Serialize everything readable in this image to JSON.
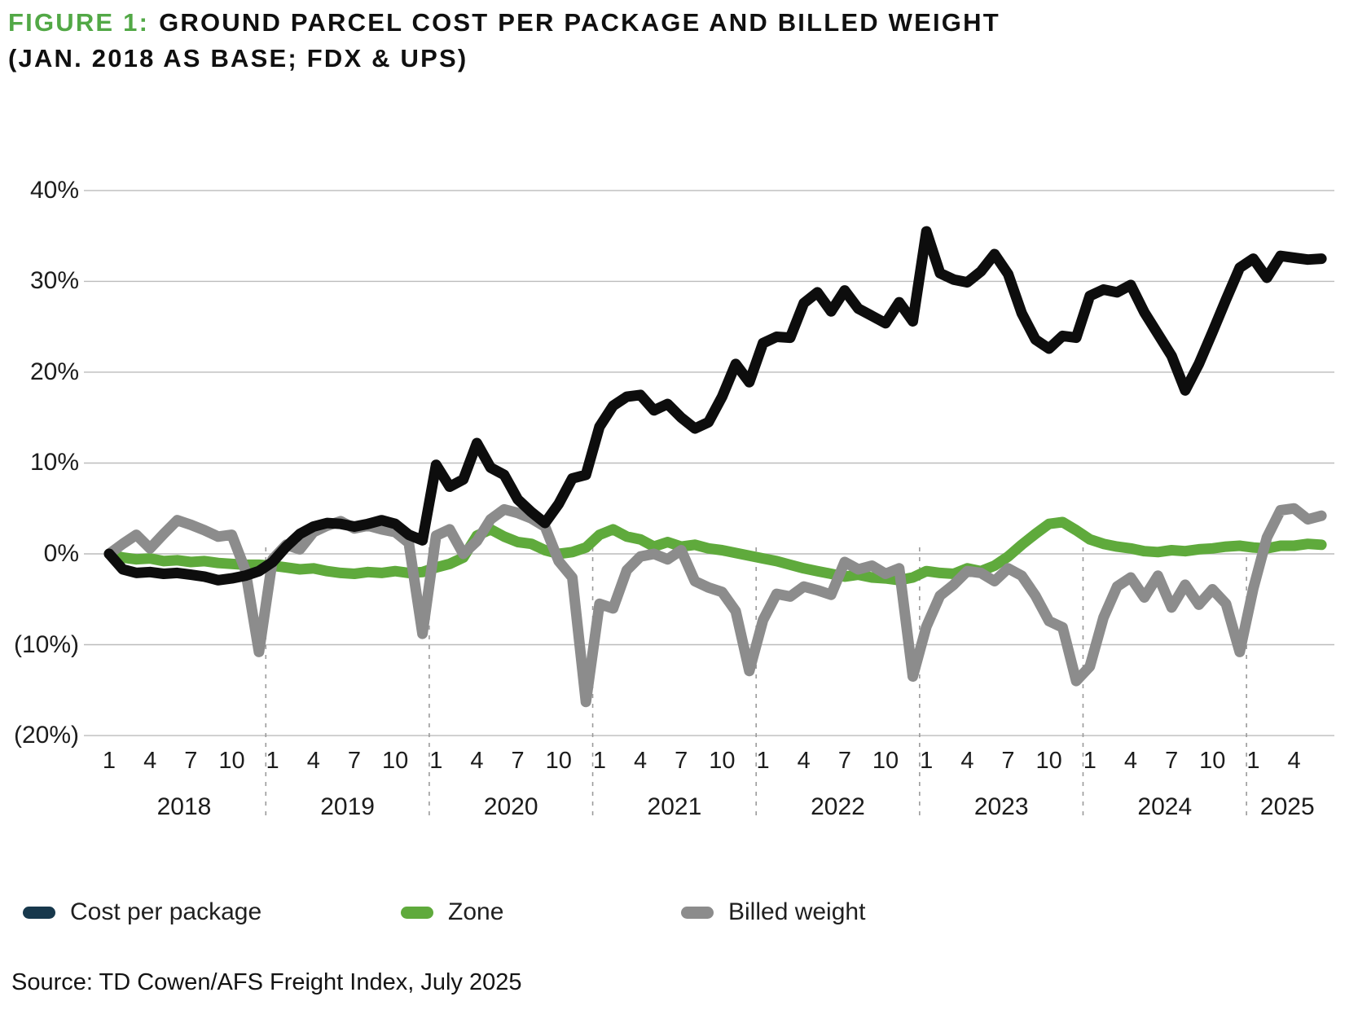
{
  "figure": {
    "label": "FIGURE 1:",
    "label_color": "#52A846",
    "title_line1": "GROUND PARCEL COST PER PACKAGE AND BILLED WEIGHT",
    "title_line2": "(JAN. 2018 AS BASE; FDX & UPS)"
  },
  "source": "Source: TD Cowen/AFS Freight Index, July 2025",
  "legend": [
    {
      "label": "Cost per package",
      "swatch_color": "#17384C"
    },
    {
      "label": "Zone",
      "swatch_color": "#5FAA3C"
    },
    {
      "label": "Billed weight",
      "swatch_color": "#8C8C8C"
    }
  ],
  "chart_data": {
    "type": "line",
    "title": "Ground parcel cost per package and billed weight (Jan. 2018 as base; FDX & UPS)",
    "grid": true,
    "legend_position": "bottom",
    "x_axis": {
      "interval": "monthly",
      "start": "2018-01",
      "end": "2025-06",
      "years": [
        "2018",
        "2019",
        "2020",
        "2021",
        "2022",
        "2023",
        "2024",
        "2025"
      ],
      "month_tick_labels": [
        "1",
        "4",
        "7",
        "10"
      ],
      "month_tick_labels_last_year": [
        "1",
        "4"
      ]
    },
    "y_axis": {
      "unit": "percent",
      "range": [
        -20,
        40
      ],
      "ticks": [
        {
          "value": 40,
          "label": "40%"
        },
        {
          "value": 30,
          "label": "30%"
        },
        {
          "value": 20,
          "label": "20%"
        },
        {
          "value": 10,
          "label": "10%"
        },
        {
          "value": 0,
          "label": "0%"
        },
        {
          "value": -10,
          "label": "(10%)"
        },
        {
          "value": -20,
          "label": "(20%)"
        }
      ]
    },
    "series": [
      {
        "name": "Cost per package",
        "color": "#0D0D0D",
        "values": [
          0,
          -1.7,
          -2.1,
          -2,
          -2.2,
          -2.1,
          -2.3,
          -2.5,
          -2.9,
          -2.7,
          -2.4,
          -1.9,
          -0.9,
          0.8,
          2.2,
          3,
          3.4,
          3.3,
          3,
          3.3,
          3.7,
          3.3,
          2.1,
          1.5,
          9.8,
          7.4,
          8.2,
          12.2,
          9.5,
          8.7,
          6,
          4.6,
          3.4,
          5.5,
          8.3,
          8.7,
          14,
          16.3,
          17.3,
          17.5,
          15.8,
          16.5,
          15,
          13.8,
          14.5,
          17.3,
          20.9,
          18.9,
          23.2,
          23.9,
          23.8,
          27.6,
          28.8,
          26.7,
          29,
          27,
          26.2,
          25.4,
          27.7,
          25.6,
          35.5,
          30.9,
          30.2,
          29.9,
          31.1,
          33,
          30.8,
          26.5,
          23.6,
          22.6,
          24,
          23.8,
          28.4,
          29.1,
          28.8,
          29.6,
          26.6,
          24.2,
          21.8,
          18,
          20.9,
          24.4,
          28,
          31.5,
          32.5,
          30.4,
          32.8,
          32.6,
          32.4,
          32.5
        ]
      },
      {
        "name": "Zone",
        "color": "#5FAA3C",
        "values": [
          0,
          -0.4,
          -0.6,
          -0.5,
          -0.8,
          -0.7,
          -0.9,
          -0.8,
          -1,
          -1.1,
          -1.2,
          -1.2,
          -1.3,
          -1.5,
          -1.7,
          -1.6,
          -1.9,
          -2.1,
          -2.2,
          -2,
          -2.1,
          -1.9,
          -2.1,
          -2,
          -1.5,
          -1.1,
          -0.4,
          2,
          2.7,
          1.9,
          1.3,
          1.1,
          0.4,
          0,
          0.2,
          0.7,
          2.1,
          2.7,
          1.9,
          1.6,
          0.8,
          1.3,
          0.8,
          1,
          0.6,
          0.4,
          0.1,
          -0.2,
          -0.5,
          -0.8,
          -1.2,
          -1.6,
          -1.9,
          -2.2,
          -2.5,
          -2.3,
          -2.6,
          -2.7,
          -2.9,
          -2.6,
          -1.9,
          -2.1,
          -2.2,
          -1.6,
          -1.9,
          -1.3,
          -0.3,
          1,
          2.2,
          3.3,
          3.5,
          2.6,
          1.6,
          1.1,
          0.8,
          0.6,
          0.3,
          0.2,
          0.4,
          0.3,
          0.5,
          0.6,
          0.8,
          0.9,
          0.7,
          0.6,
          0.9,
          0.9,
          1.1,
          1
        ]
      },
      {
        "name": "Billed weight",
        "color": "#8C8C8C",
        "values": [
          0,
          1.1,
          2.1,
          0.6,
          2.2,
          3.7,
          3.2,
          2.6,
          1.9,
          2.1,
          -1.8,
          -10.8,
          -0.6,
          1,
          0.5,
          2.4,
          3.1,
          3.6,
          2.8,
          3.1,
          2.7,
          2.4,
          1.2,
          -8.8,
          2,
          2.7,
          0,
          1.4,
          3.8,
          4.9,
          4.5,
          3.9,
          3,
          -0.8,
          -2.6,
          -16.3,
          -5.5,
          -6,
          -1.8,
          -0.3,
          0,
          -0.6,
          0.4,
          -3,
          -3.7,
          -4.2,
          -6.3,
          -12.9,
          -7.3,
          -4.4,
          -4.7,
          -3.6,
          -4,
          -4.5,
          -0.9,
          -1.7,
          -1.3,
          -2.2,
          -1.6,
          -13.5,
          -8,
          -4.6,
          -3.4,
          -1.9,
          -2.1,
          -3,
          -1.6,
          -2.4,
          -4.6,
          -7.4,
          -8.1,
          -14,
          -12.4,
          -7,
          -3.6,
          -2.6,
          -4.8,
          -2.4,
          -5.9,
          -3.4,
          -5.6,
          -3.9,
          -5.5,
          -10.8,
          -3.8,
          1.8,
          4.8,
          5,
          3.8,
          4.2
        ]
      }
    ]
  }
}
